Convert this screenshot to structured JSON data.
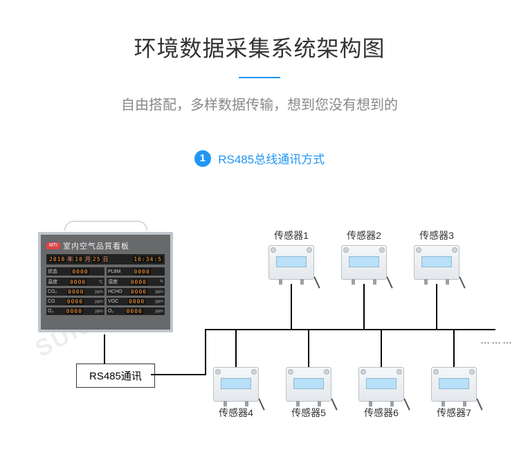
{
  "header": {
    "main_title": "环境数据采集系统架构图",
    "subtitle": "自由搭配，多样数据传输，想到您没有想到的",
    "underline_color": "#2196f3"
  },
  "section": {
    "badge_number": "1",
    "badge_text": "RS485总线通讯方式",
    "accent_color": "#2196f3"
  },
  "diagram": {
    "type": "network",
    "bus_label": "RS485通讯",
    "continuation": "………",
    "sensors_top": [
      {
        "label": "传感器1"
      },
      {
        "label": "传感器2"
      },
      {
        "label": "传感器3"
      }
    ],
    "sensors_bottom": [
      {
        "label": "传感器4"
      },
      {
        "label": "传感器5"
      },
      {
        "label": "传感器6"
      },
      {
        "label": "传感器7"
      }
    ],
    "panel": {
      "logo": "MTI",
      "title": "室内空气品質看板",
      "date_parts": {
        "year": "2018",
        "y_lbl": "年",
        "month": "10",
        "m_lbl": "月",
        "day": "25",
        "d_lbl": "日",
        "time": "16:34:5"
      },
      "rows": [
        {
          "l_name": "状态",
          "l_val": "0000",
          "l_unit": "",
          "r_name": "PL8M",
          "r_val": "0000",
          "r_unit": ""
        },
        {
          "l_name": "温度",
          "l_val": "0000",
          "l_unit": "℃",
          "r_name": "湿度",
          "r_val": "0000",
          "r_unit": "%"
        },
        {
          "l_name": "CO₂",
          "l_val": "0000",
          "l_unit": "ppm",
          "r_name": "HCHO",
          "r_val": "0000",
          "r_unit": "ppm"
        },
        {
          "l_name": "CO",
          "l_val": "0000",
          "l_unit": "ppm",
          "r_name": "VOC",
          "r_val": "0000",
          "r_unit": "ppm"
        },
        {
          "l_name": "O₃",
          "l_val": "0000",
          "l_unit": "ppm",
          "r_name": "O₂",
          "r_val": "0000",
          "r_unit": "ppm"
        }
      ]
    },
    "line_color": "#000000",
    "sensor_body_color": "#e8ecef",
    "lcd_color": "#b8e0f8"
  },
  "watermark": "SUNPN讯鹏"
}
